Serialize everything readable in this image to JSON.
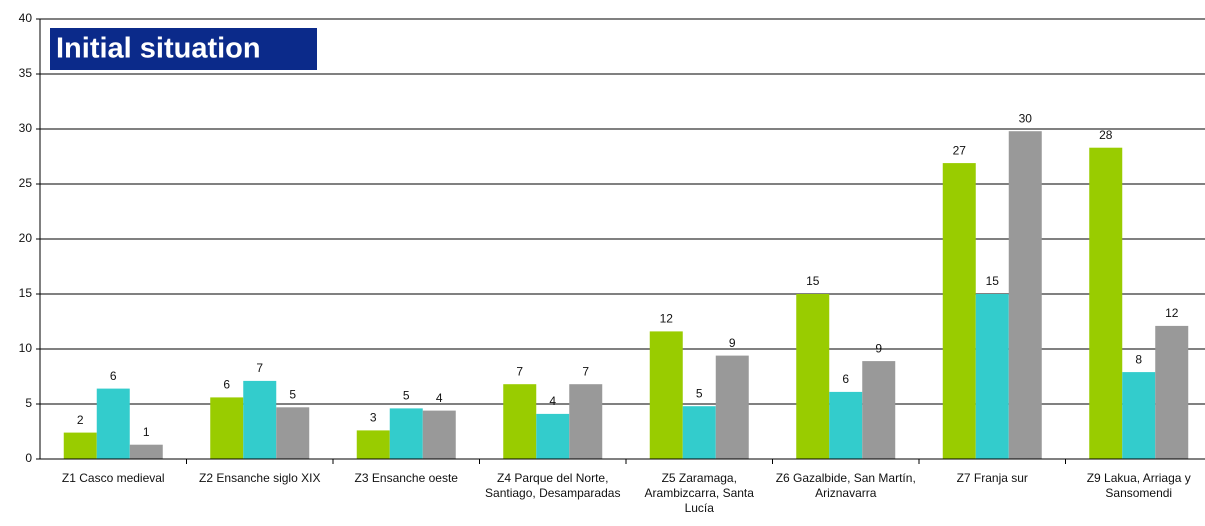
{
  "chart_data": {
    "type": "bar",
    "title": "Initial situation",
    "categories": [
      "Z1 Casco medieval",
      "Z2 Ensanche siglo XIX",
      "Z3 Ensanche oeste",
      "Z4 Parque del Norte, Santiago, Desamparadas",
      "Z5 Zaramaga, Arambizcarra, Santa Lucía",
      "Z6 Gazalbide, San Martín, Ariznavarra",
      "Z7 Franja sur",
      "Z9 Lakua, Arriaga y Sansomendi"
    ],
    "series": [
      {
        "color": "#99cc00",
        "values": [
          2.4,
          5.6,
          2.6,
          6.8,
          11.6,
          15,
          26.9,
          28.3
        ],
        "value_labels": [
          "2",
          "6",
          "3",
          "7",
          "12",
          "15",
          "27",
          "28"
        ]
      },
      {
        "color": "#33cccc",
        "values": [
          6.4,
          7.1,
          4.6,
          4.1,
          4.8,
          6.1,
          15,
          7.9
        ],
        "value_labels": [
          "6",
          "7",
          "5",
          "4",
          "5",
          "6",
          "15",
          "8"
        ]
      },
      {
        "color": "#999999",
        "values": [
          1.3,
          4.7,
          4.4,
          6.8,
          9.4,
          8.9,
          29.8,
          12.1
        ],
        "value_labels": [
          "1",
          "5",
          "4",
          "7",
          "9",
          "9",
          "30",
          "12"
        ]
      }
    ],
    "ylim": [
      0,
      40
    ],
    "yticks": [
      0,
      5,
      10,
      15,
      20,
      25,
      30,
      35,
      40
    ],
    "grid": true
  }
}
